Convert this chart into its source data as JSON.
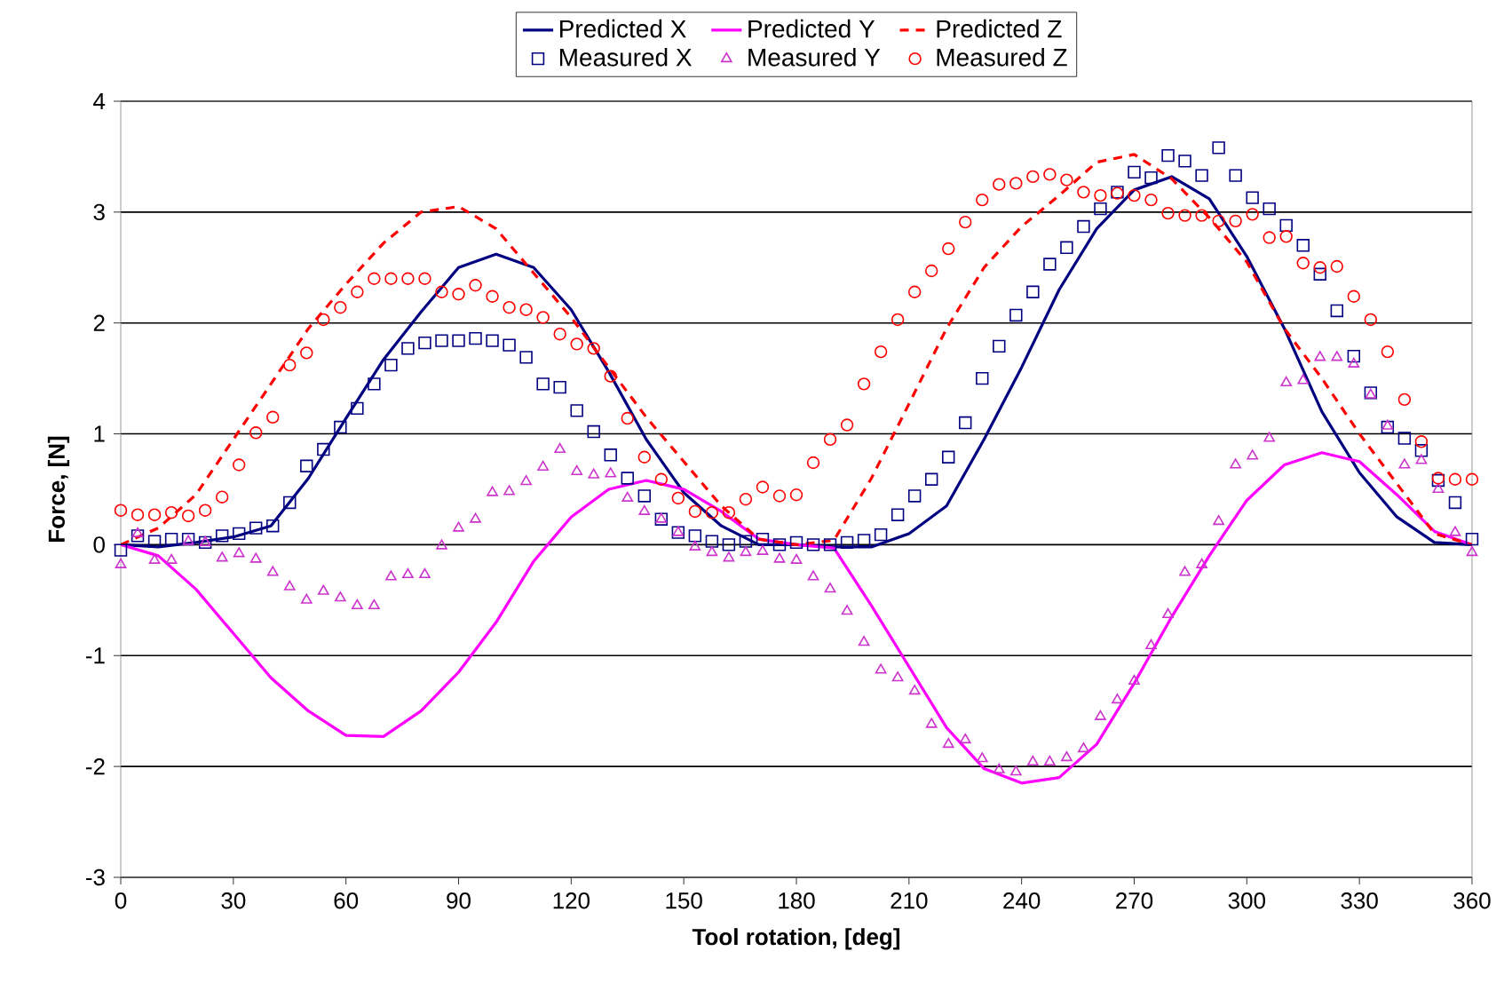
{
  "chart_data": {
    "type": "scatter",
    "xlabel": "Tool rotation, [deg]",
    "ylabel": "Force, [N]",
    "x": [
      0,
      4.5,
      9,
      13.5,
      18,
      22.5,
      27,
      31.5,
      36,
      40.5,
      45,
      49.5,
      54,
      58.5,
      63,
      67.5,
      72,
      76.5,
      81,
      85.5,
      90,
      94.5,
      99,
      103.5,
      108,
      112.5,
      117,
      121.5,
      126,
      130.5,
      135,
      139.5,
      144,
      148.5,
      153,
      157.5,
      162,
      166.5,
      171,
      175.5,
      180,
      184.5,
      189,
      193.5,
      198,
      202.5,
      207,
      211.5,
      216,
      220.5,
      225,
      229.5,
      234,
      238.5,
      243,
      247.5,
      252,
      256.5,
      261,
      265.5,
      270,
      274.5,
      279,
      283.5,
      288,
      292.5,
      297,
      301.5,
      306,
      310.5,
      315,
      319.5,
      324,
      328.5,
      333,
      337.5,
      342,
      346.5,
      351,
      355.5,
      360
    ],
    "series": [
      {
        "name": "Predicted X",
        "type": "line",
        "color": "#000080",
        "marker": "none",
        "line_style": "solid",
        "x": [
          0,
          10,
          20,
          30,
          40,
          50,
          60,
          70,
          80,
          90,
          100,
          110,
          120,
          130,
          140,
          150,
          160,
          170,
          180,
          190,
          200,
          210,
          220,
          230,
          240,
          250,
          260,
          270,
          280,
          290,
          300,
          310,
          320,
          330,
          340,
          350,
          360
        ],
        "values": [
          0,
          -0.02,
          0.02,
          0.07,
          0.17,
          0.6,
          1.14,
          1.67,
          2.1,
          2.5,
          2.62,
          2.5,
          2.12,
          1.56,
          0.95,
          0.47,
          0.17,
          0,
          0,
          -0.02,
          -0.02,
          0.1,
          0.35,
          0.95,
          1.6,
          2.3,
          2.85,
          3.2,
          3.32,
          3.12,
          2.6,
          1.95,
          1.2,
          0.65,
          0.25,
          0.02,
          0
        ]
      },
      {
        "name": "Predicted Y",
        "type": "line",
        "color": "#ff00ff",
        "marker": "none",
        "line_style": "solid",
        "x": [
          0,
          10,
          20,
          30,
          40,
          50,
          60,
          70,
          80,
          90,
          100,
          110,
          120,
          130,
          140,
          150,
          160,
          170,
          180,
          190,
          200,
          210,
          220,
          230,
          240,
          250,
          260,
          270,
          280,
          290,
          300,
          310,
          320,
          330,
          340,
          350,
          360
        ],
        "values": [
          0,
          -0.1,
          -0.4,
          -0.8,
          -1.2,
          -1.5,
          -1.72,
          -1.73,
          -1.5,
          -1.15,
          -0.7,
          -0.15,
          0.25,
          0.5,
          0.58,
          0.5,
          0.3,
          0.05,
          0,
          -0.03,
          -0.55,
          -1.1,
          -1.65,
          -2.02,
          -2.15,
          -2.1,
          -1.8,
          -1.25,
          -0.65,
          -0.1,
          0.4,
          0.72,
          0.83,
          0.75,
          0.45,
          0.12,
          0
        ]
      },
      {
        "name": "Predicted Z",
        "type": "line",
        "color": "#ff0000",
        "marker": "none",
        "line_style": "dashed",
        "x": [
          0,
          10,
          20,
          30,
          40,
          50,
          60,
          70,
          80,
          90,
          100,
          110,
          120,
          130,
          140,
          150,
          160,
          170,
          180,
          190,
          200,
          210,
          220,
          230,
          240,
          250,
          260,
          270,
          280,
          290,
          300,
          310,
          320,
          330,
          340,
          350,
          360
        ],
        "values": [
          0,
          0.15,
          0.45,
          0.95,
          1.45,
          1.95,
          2.35,
          2.72,
          3.0,
          3.05,
          2.85,
          2.45,
          2.05,
          1.6,
          1.15,
          0.75,
          0.35,
          0.05,
          0,
          0.04,
          0.6,
          1.27,
          1.95,
          2.5,
          2.87,
          3.15,
          3.45,
          3.52,
          3.3,
          2.95,
          2.55,
          1.95,
          1.5,
          1.0,
          0.55,
          0.1,
          0
        ]
      },
      {
        "name": "Measured X",
        "color": "#000080",
        "marker": "square",
        "values": [
          -0.05,
          0.08,
          0.03,
          0.05,
          0.05,
          0.02,
          0.08,
          0.1,
          0.15,
          0.17,
          0.38,
          0.71,
          0.86,
          1.06,
          1.23,
          1.45,
          1.62,
          1.77,
          1.82,
          1.84,
          1.84,
          1.86,
          1.84,
          1.8,
          1.69,
          1.45,
          1.42,
          1.21,
          1.02,
          0.81,
          0.6,
          0.44,
          0.23,
          0.11,
          0.08,
          0.03,
          0,
          0.03,
          0.05,
          0,
          0.02,
          0,
          0,
          0.02,
          0.04,
          0.09,
          0.27,
          0.44,
          0.59,
          0.79,
          1.1,
          1.5,
          1.79,
          2.07,
          2.28,
          2.53,
          2.68,
          2.87,
          3.03,
          3.18,
          3.36,
          3.31,
          3.51,
          3.46,
          3.33,
          3.58,
          3.33,
          3.13,
          3.03,
          2.88,
          2.7,
          2.44,
          2.11,
          1.7,
          1.37,
          1.06,
          0.96,
          0.85,
          0.58,
          0.38,
          0.05
        ]
      },
      {
        "name": "Measured Y",
        "color": "#cc33cc",
        "marker": "triangle",
        "values": [
          -0.18,
          0.1,
          -0.14,
          -0.14,
          0.03,
          0.02,
          -0.12,
          -0.08,
          -0.13,
          -0.25,
          -0.38,
          -0.5,
          -0.42,
          -0.48,
          -0.55,
          -0.55,
          -0.29,
          -0.27,
          -0.27,
          -0.01,
          0.15,
          0.23,
          0.47,
          0.48,
          0.57,
          0.7,
          0.86,
          0.66,
          0.63,
          0.64,
          0.42,
          0.3,
          0.23,
          0.11,
          -0.02,
          -0.07,
          -0.12,
          -0.07,
          -0.06,
          -0.13,
          -0.14,
          -0.29,
          -0.4,
          -0.6,
          -0.88,
          -1.13,
          -1.2,
          -1.32,
          -1.62,
          -1.8,
          -1.76,
          -1.93,
          -2.03,
          -2.05,
          -1.96,
          -1.96,
          -1.92,
          -1.84,
          -1.55,
          -1.4,
          -1.23,
          -0.91,
          -0.63,
          -0.25,
          -0.18,
          0.21,
          0.72,
          0.8,
          0.96,
          1.46,
          1.48,
          1.69,
          1.69,
          1.63,
          1.35,
          1.07,
          0.72,
          0.76,
          0.5,
          0.11,
          -0.07
        ]
      },
      {
        "name": "Measured Z",
        "color": "#ff0000",
        "marker": "circle",
        "values": [
          0.31,
          0.27,
          0.27,
          0.29,
          0.26,
          0.31,
          0.43,
          0.72,
          1.01,
          1.15,
          1.62,
          1.73,
          2.03,
          2.14,
          2.28,
          2.4,
          2.4,
          2.4,
          2.4,
          2.28,
          2.26,
          2.34,
          2.24,
          2.14,
          2.12,
          2.05,
          1.9,
          1.81,
          1.77,
          1.52,
          1.14,
          0.79,
          0.59,
          0.42,
          0.3,
          0.29,
          0.29,
          0.41,
          0.52,
          0.44,
          0.45,
          0.74,
          0.95,
          1.08,
          1.45,
          1.74,
          2.03,
          2.28,
          2.47,
          2.67,
          2.91,
          3.11,
          3.25,
          3.26,
          3.32,
          3.34,
          3.29,
          3.18,
          3.15,
          3.17,
          3.15,
          3.11,
          2.99,
          2.97,
          2.97,
          2.92,
          2.92,
          2.98,
          2.77,
          2.78,
          2.54,
          2.5,
          2.51,
          2.24,
          2.03,
          1.74,
          1.31,
          0.93,
          0.6,
          0.59,
          0.59
        ]
      }
    ],
    "xlim": [
      0,
      360
    ],
    "xticks": [
      0,
      30,
      60,
      90,
      120,
      150,
      180,
      210,
      240,
      270,
      300,
      330,
      360
    ],
    "ylim": [
      -3,
      4
    ],
    "yticks": [
      -3,
      -2,
      -1,
      0,
      1,
      2,
      3,
      4
    ],
    "grid": "y",
    "legend": "top"
  }
}
